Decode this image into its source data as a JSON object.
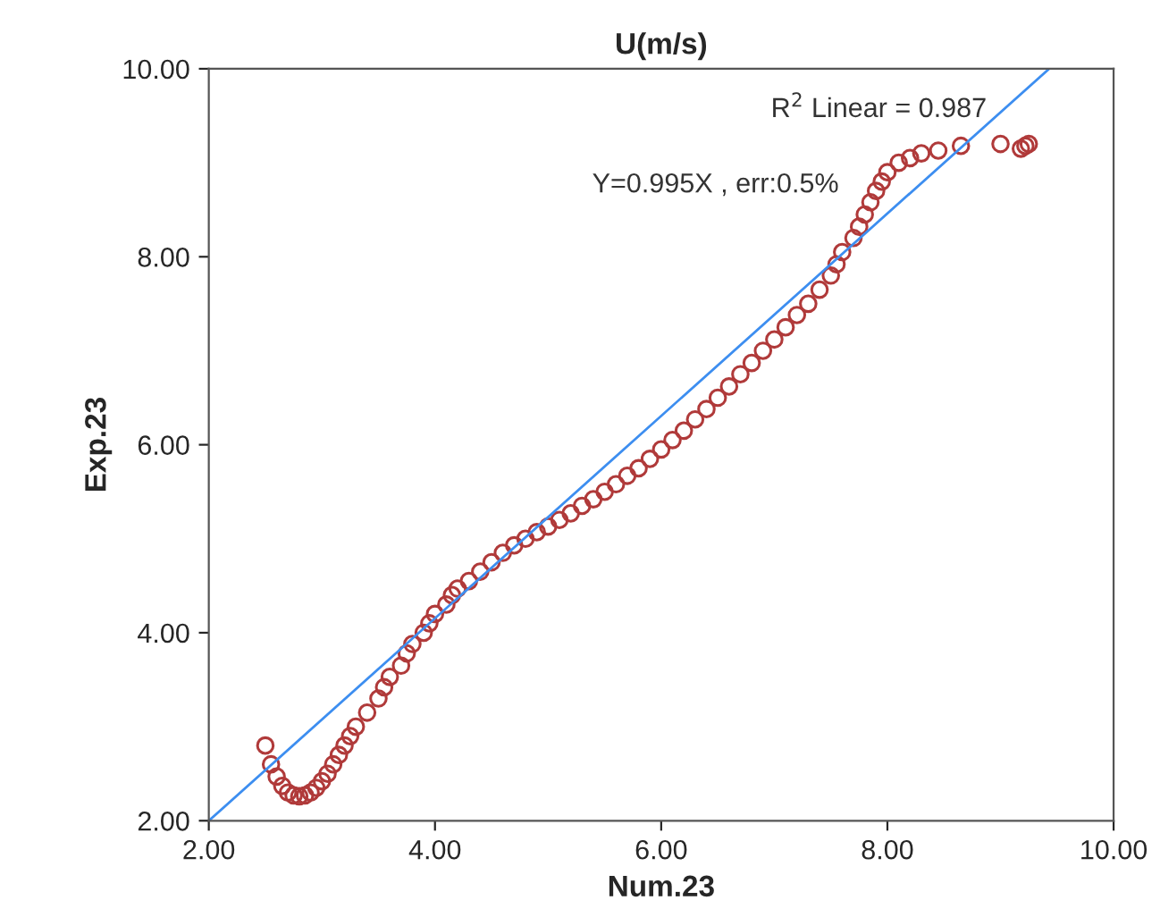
{
  "chart_data": {
    "type": "scatter",
    "title": "U(m/s)",
    "xlabel": "Num.23",
    "ylabel": "Exp.23",
    "xlim": [
      2,
      10
    ],
    "ylim": [
      2,
      10
    ],
    "xticks": [
      {
        "value": 2,
        "label": "2.00"
      },
      {
        "value": 4,
        "label": "4.00"
      },
      {
        "value": 6,
        "label": "6.00"
      },
      {
        "value": 8,
        "label": "8.00"
      },
      {
        "value": 10,
        "label": "10.00"
      }
    ],
    "yticks": [
      {
        "value": 2,
        "label": "2.00"
      },
      {
        "value": 4,
        "label": "4.00"
      },
      {
        "value": 6,
        "label": "6.00"
      },
      {
        "value": 8,
        "label": "8.00"
      },
      {
        "value": 10,
        "label": "10.00"
      }
    ],
    "grid": false,
    "marker": "circle",
    "annotations": [
      "R$^{2}$ Linear = 0.987",
      "Y=0.995X , err:0.5%"
    ],
    "series": [
      {
        "color": "#b03a3a",
        "x": [
          2.5,
          2.55,
          2.6,
          2.65,
          2.7,
          2.75,
          2.8,
          2.85,
          2.9,
          2.95,
          3.0,
          3.05,
          3.1,
          3.15,
          3.2,
          3.25,
          3.3,
          3.4,
          3.5,
          3.55,
          3.6,
          3.7,
          3.75,
          3.8,
          3.9,
          3.95,
          4.0,
          4.1,
          4.15,
          4.2,
          4.3,
          4.4,
          4.5,
          4.6,
          4.7,
          4.8,
          4.9,
          5.0,
          5.1,
          5.2,
          5.3,
          5.4,
          5.5,
          5.6,
          5.7,
          5.8,
          5.9,
          6.0,
          6.1,
          6.2,
          6.3,
          6.4,
          6.5,
          6.6,
          6.7,
          6.8,
          6.9,
          7.0,
          7.1,
          7.2,
          7.3,
          7.4,
          7.5,
          7.55,
          7.6,
          7.7,
          7.75,
          7.8,
          7.85,
          7.9,
          7.95,
          8.0,
          8.1,
          8.2,
          8.3,
          8.45,
          8.65,
          9.0,
          9.18,
          9.22,
          9.25
        ],
        "values": [
          2.8,
          2.6,
          2.47,
          2.37,
          2.3,
          2.27,
          2.26,
          2.27,
          2.3,
          2.35,
          2.42,
          2.5,
          2.6,
          2.7,
          2.8,
          2.9,
          3.0,
          3.15,
          3.3,
          3.42,
          3.53,
          3.65,
          3.78,
          3.88,
          4.0,
          4.1,
          4.2,
          4.3,
          4.4,
          4.47,
          4.55,
          4.65,
          4.75,
          4.85,
          4.93,
          5.0,
          5.07,
          5.13,
          5.2,
          5.27,
          5.35,
          5.42,
          5.5,
          5.58,
          5.67,
          5.75,
          5.85,
          5.95,
          6.05,
          6.15,
          6.27,
          6.38,
          6.5,
          6.62,
          6.75,
          6.87,
          7.0,
          7.12,
          7.25,
          7.38,
          7.5,
          7.65,
          7.8,
          7.92,
          8.05,
          8.2,
          8.32,
          8.45,
          8.58,
          8.7,
          8.8,
          8.9,
          9.0,
          9.05,
          9.1,
          9.13,
          9.18,
          9.2,
          9.15,
          9.18,
          9.2
        ]
      },
      {
        "type": "line",
        "color": "#3d8ef0",
        "marker": "none",
        "line_style": "solid",
        "x": [
          2.0,
          9.43
        ],
        "values": [
          2.0,
          10.0
        ]
      }
    ]
  }
}
